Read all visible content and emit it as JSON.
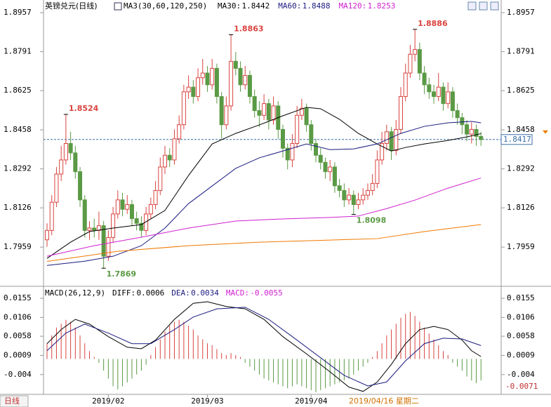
{
  "chart_data": {
    "type": "candlestick",
    "title": "英镑兑元(日线)",
    "indicator_label": "MA3(30,60,120,250)",
    "ylim": [
      1.7801,
      1.8996
    ],
    "yticks": [
      1.8957,
      1.8791,
      1.8625,
      1.8458,
      1.8292,
      1.8126,
      1.7959
    ],
    "last_price": 1.8417,
    "xticks": [
      {
        "value": 13,
        "label": "2019/02"
      },
      {
        "value": 34,
        "label": "2019/03"
      },
      {
        "value": 56,
        "label": "2019/04"
      }
    ],
    "crosshair_date": "2019/04/16 星期二",
    "period_tab": "日线",
    "candles": [
      [
        1.799,
        1.806,
        1.796,
        1.803
      ],
      [
        1.803,
        1.818,
        1.801,
        1.815
      ],
      [
        1.815,
        1.83,
        1.813,
        1.827
      ],
      [
        1.827,
        1.839,
        1.824,
        1.833
      ],
      [
        1.833,
        1.8524,
        1.831,
        1.84
      ],
      [
        1.84,
        1.845,
        1.833,
        1.836
      ],
      [
        1.836,
        1.839,
        1.825,
        1.828
      ],
      [
        1.828,
        1.83,
        1.813,
        1.816
      ],
      [
        1.816,
        1.818,
        1.8,
        1.803
      ],
      [
        1.803,
        1.807,
        1.799,
        1.804
      ],
      [
        1.804,
        1.808,
        1.8,
        1.803
      ],
      [
        1.803,
        1.811,
        1.799,
        1.805
      ],
      [
        1.805,
        1.807,
        1.7869,
        1.792
      ],
      [
        1.792,
        1.803,
        1.79,
        1.8
      ],
      [
        1.8,
        1.813,
        1.798,
        1.81
      ],
      [
        1.81,
        1.82,
        1.808,
        1.816
      ],
      [
        1.816,
        1.819,
        1.809,
        1.812
      ],
      [
        1.812,
        1.818,
        1.81,
        1.814
      ],
      [
        1.814,
        1.816,
        1.805,
        1.808
      ],
      [
        1.808,
        1.811,
        1.803,
        1.806
      ],
      [
        1.806,
        1.809,
        1.8,
        1.803
      ],
      [
        1.803,
        1.813,
        1.801,
        1.81
      ],
      [
        1.81,
        1.817,
        1.808,
        1.814
      ],
      [
        1.814,
        1.824,
        1.812,
        1.82
      ],
      [
        1.82,
        1.834,
        1.818,
        1.83
      ],
      [
        1.83,
        1.839,
        1.827,
        1.835
      ],
      [
        1.835,
        1.838,
        1.83,
        1.833
      ],
      [
        1.833,
        1.846,
        1.831,
        1.842
      ],
      [
        1.842,
        1.852,
        1.84,
        1.848
      ],
      [
        1.848,
        1.865,
        1.846,
        1.862
      ],
      [
        1.862,
        1.869,
        1.859,
        1.864
      ],
      [
        1.864,
        1.867,
        1.857,
        1.86
      ],
      [
        1.86,
        1.872,
        1.858,
        1.868
      ],
      [
        1.868,
        1.876,
        1.865,
        1.87
      ],
      [
        1.87,
        1.873,
        1.862,
        1.865
      ],
      [
        1.865,
        1.876,
        1.863,
        1.872
      ],
      [
        1.872,
        1.874,
        1.857,
        1.86
      ],
      [
        1.86,
        1.862,
        1.842,
        1.848
      ],
      [
        1.848,
        1.86,
        1.846,
        1.856
      ],
      [
        1.856,
        1.8863,
        1.854,
        1.875
      ],
      [
        1.875,
        1.879,
        1.869,
        1.872
      ],
      [
        1.872,
        1.875,
        1.862,
        1.865
      ],
      [
        1.865,
        1.873,
        1.863,
        1.869
      ],
      [
        1.869,
        1.871,
        1.857,
        1.86
      ],
      [
        1.86,
        1.863,
        1.851,
        1.854
      ],
      [
        1.854,
        1.858,
        1.847,
        1.852
      ],
      [
        1.852,
        1.861,
        1.85,
        1.857
      ],
      [
        1.857,
        1.859,
        1.846,
        1.85
      ],
      [
        1.85,
        1.86,
        1.848,
        1.856
      ],
      [
        1.856,
        1.858,
        1.842,
        1.846
      ],
      [
        1.846,
        1.848,
        1.834,
        1.838
      ],
      [
        1.838,
        1.84,
        1.829,
        1.833
      ],
      [
        1.833,
        1.844,
        1.83,
        1.84
      ],
      [
        1.84,
        1.856,
        1.838,
        1.852
      ],
      [
        1.852,
        1.859,
        1.85,
        1.855
      ],
      [
        1.855,
        1.857,
        1.845,
        1.848
      ],
      [
        1.848,
        1.85,
        1.837,
        1.84
      ],
      [
        1.84,
        1.842,
        1.832,
        1.835
      ],
      [
        1.835,
        1.838,
        1.829,
        1.832
      ],
      [
        1.832,
        1.834,
        1.825,
        1.828
      ],
      [
        1.828,
        1.833,
        1.824,
        1.83
      ],
      [
        1.83,
        1.832,
        1.819,
        1.822
      ],
      [
        1.822,
        1.825,
        1.817,
        1.82
      ],
      [
        1.82,
        1.823,
        1.813,
        1.816
      ],
      [
        1.816,
        1.821,
        1.814,
        1.818
      ],
      [
        1.818,
        1.82,
        1.8098,
        1.814
      ],
      [
        1.814,
        1.819,
        1.812,
        1.816
      ],
      [
        1.816,
        1.821,
        1.814,
        1.818
      ],
      [
        1.818,
        1.823,
        1.816,
        1.82
      ],
      [
        1.82,
        1.827,
        1.818,
        1.823
      ],
      [
        1.823,
        1.837,
        1.821,
        1.833
      ],
      [
        1.833,
        1.845,
        1.831,
        1.84
      ],
      [
        1.84,
        1.848,
        1.837,
        1.845
      ],
      [
        1.845,
        1.847,
        1.833,
        1.837
      ],
      [
        1.837,
        1.85,
        1.835,
        1.846
      ],
      [
        1.846,
        1.864,
        1.844,
        1.86
      ],
      [
        1.86,
        1.874,
        1.858,
        1.87
      ],
      [
        1.87,
        1.882,
        1.868,
        1.878
      ],
      [
        1.878,
        1.8886,
        1.875,
        1.88
      ],
      [
        1.88,
        1.883,
        1.867,
        1.87
      ],
      [
        1.87,
        1.873,
        1.861,
        1.865
      ],
      [
        1.865,
        1.868,
        1.859,
        1.862
      ],
      [
        1.862,
        1.865,
        1.857,
        1.86
      ],
      [
        1.86,
        1.87,
        1.858,
        1.864
      ],
      [
        1.864,
        1.866,
        1.854,
        1.857
      ],
      [
        1.857,
        1.866,
        1.855,
        1.862
      ],
      [
        1.862,
        1.864,
        1.851,
        1.854
      ],
      [
        1.854,
        1.857,
        1.848,
        1.851
      ],
      [
        1.851,
        1.853,
        1.844,
        1.848
      ],
      [
        1.848,
        1.85,
        1.841,
        1.844
      ],
      [
        1.844,
        1.849,
        1.84,
        1.846
      ],
      [
        1.846,
        1.848,
        1.839,
        1.843
      ],
      [
        1.843,
        1.845,
        1.839,
        1.8417
      ]
    ],
    "up_color": "#d9433f",
    "down_color": "#5a9a45",
    "annotations": [
      {
        "index": 4,
        "value": 1.8524,
        "color": "#d9433f"
      },
      {
        "index": 39,
        "value": 1.8863,
        "color": "#d9433f"
      },
      {
        "index": 78,
        "value": 1.8886,
        "color": "#d9433f"
      },
      {
        "index": 12,
        "value": 1.7869,
        "color": "#5a9a45"
      },
      {
        "index": 65,
        "value": 1.8098,
        "color": "#5a9a45"
      }
    ],
    "ma": [
      {
        "name": "MA30",
        "latest": 1.8442,
        "color": "#000000",
        "x": [
          0,
          5,
          9,
          14,
          20,
          25,
          30,
          35,
          40,
          45,
          50,
          55,
          58,
          62,
          66,
          70,
          73,
          76,
          80,
          85,
          89,
          92
        ],
        "values": [
          1.7911,
          1.798,
          1.8025,
          1.804,
          1.8055,
          1.8115,
          1.8264,
          1.8398,
          1.8443,
          1.8479,
          1.8518,
          1.8554,
          1.8548,
          1.8503,
          1.8443,
          1.8398,
          1.8368,
          1.8383,
          1.8398,
          1.8413,
          1.8428,
          1.8442
        ]
      },
      {
        "name": "MA60",
        "latest": 1.8488,
        "color": "#1a1a80",
        "x": [
          0,
          8,
          14,
          20,
          25,
          30,
          35,
          40,
          45,
          50,
          55,
          60,
          65,
          70,
          75,
          80,
          85,
          90,
          92
        ],
        "values": [
          1.7881,
          1.7899,
          1.792,
          1.7965,
          1.804,
          1.8144,
          1.8219,
          1.8294,
          1.8339,
          1.8368,
          1.8398,
          1.8374,
          1.8377,
          1.8398,
          1.8443,
          1.8473,
          1.8488,
          1.8494,
          1.8488
        ]
      },
      {
        "name": "MA120",
        "latest": 1.8253,
        "color": "#d020d0",
        "x": [
          0,
          10,
          20,
          30,
          40,
          50,
          60,
          66,
          72,
          78,
          85,
          92
        ],
        "values": [
          1.792,
          1.7965,
          1.8001,
          1.804,
          1.807,
          1.8079,
          1.8085,
          1.8091,
          1.8123,
          1.8159,
          1.821,
          1.8253
        ]
      },
      {
        "color": "#f07800",
        "x": [
          0,
          15,
          30,
          45,
          60,
          70,
          80,
          92
        ],
        "values": [
          1.7898,
          1.7941,
          1.7965,
          1.798,
          1.7989,
          1.7995,
          1.8025,
          1.8055
        ]
      }
    ],
    "macd": {
      "label": "MACD(26,12,9)",
      "ylim": [
        -0.0087,
        0.0173
      ],
      "yticks": [
        0.0155,
        0.0106,
        0.0058,
        0.0009,
        -0.004
      ],
      "marker": -0.0071,
      "hist": {
        "name": "MACD",
        "latest": -0.0055,
        "values": [
          0.004,
          0.006,
          0.008,
          0.009,
          0.01,
          0.0095,
          0.008,
          0.006,
          0.004,
          0.002,
          0.0005,
          -0.001,
          -0.003,
          -0.005,
          -0.007,
          -0.0078,
          -0.007,
          -0.006,
          -0.005,
          -0.004,
          -0.003,
          -0.0015,
          0.001,
          0.003,
          0.005,
          0.007,
          0.0085,
          0.0095,
          0.01,
          0.0095,
          0.0085,
          0.0075,
          0.006,
          0.005,
          0.004,
          0.0035,
          0.0025,
          0.0015,
          0.001,
          0.0015,
          0.001,
          0.0005,
          -0.001,
          -0.002,
          -0.003,
          -0.004,
          -0.005,
          -0.0055,
          -0.006,
          -0.0065,
          -0.007,
          -0.0075,
          -0.007,
          -0.0065,
          -0.007,
          -0.0075,
          -0.008,
          -0.0085,
          -0.008,
          -0.0075,
          -0.007,
          -0.0065,
          -0.006,
          -0.0055,
          -0.005,
          -0.004,
          -0.003,
          -0.002,
          -0.001,
          0.0005,
          0.002,
          0.004,
          0.006,
          0.0075,
          0.009,
          0.0105,
          0.0115,
          0.012,
          0.011,
          0.0095,
          0.008,
          0.0065,
          0.005,
          0.0035,
          0.002,
          0.001,
          -0.001,
          -0.002,
          -0.003,
          -0.0045,
          -0.0055,
          -0.0062,
          -0.0055
        ]
      },
      "lines": [
        {
          "name": "DIFF",
          "latest": 0.0006,
          "color": "#000000",
          "x": [
            0,
            3,
            6,
            9,
            13,
            17,
            20,
            23,
            27,
            31,
            34,
            38,
            42,
            46,
            50,
            55,
            60,
            64,
            67,
            70,
            73,
            76,
            79,
            82,
            85,
            88,
            90,
            92
          ],
          "values": [
            0.0039,
            0.0075,
            0.0101,
            0.0089,
            0.0057,
            0.003,
            0.0026,
            0.0048,
            0.0101,
            0.0142,
            0.0146,
            0.0134,
            0.0128,
            0.0101,
            0.0057,
            0.0013,
            -0.0033,
            -0.0072,
            -0.0083,
            -0.0059,
            -0.0014,
            0.0039,
            0.0075,
            0.0083,
            0.0075,
            0.0048,
            0.0021,
            0.0006
          ]
        },
        {
          "name": "DEA",
          "latest": 0.0034,
          "color": "#1a1a80",
          "x": [
            0,
            4,
            8,
            13,
            18,
            22,
            27,
            31,
            36,
            42,
            47,
            52,
            58,
            63,
            68,
            72,
            76,
            80,
            84,
            88,
            92
          ],
          "values": [
            0.0021,
            0.0066,
            0.0089,
            0.0066,
            0.0039,
            0.0039,
            0.0075,
            0.0107,
            0.0128,
            0.0132,
            0.0101,
            0.0057,
            0.0003,
            -0.0042,
            -0.0069,
            -0.0059,
            -0.0005,
            0.0039,
            0.0053,
            0.0051,
            0.0034
          ]
        }
      ]
    }
  }
}
